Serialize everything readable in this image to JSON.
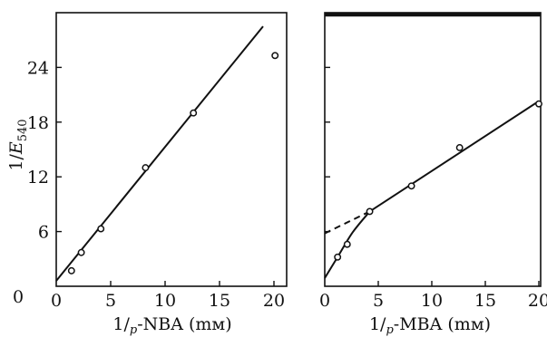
{
  "chart_data": [
    {
      "type": "scatter",
      "title": "",
      "xlabel": "1/p-NBA (mM)",
      "ylabel": "1/E540",
      "xlim": [
        0,
        21
      ],
      "ylim": [
        0,
        30
      ],
      "x_ticks": [
        "0",
        "5",
        "10",
        "15",
        "20"
      ],
      "y_ticks": [
        "6",
        "12",
        "18",
        "24"
      ],
      "series": [
        {
          "points": [
            {
              "x": 1.4,
              "y": 1.7
            },
            {
              "x": 2.3,
              "y": 3.7
            },
            {
              "x": 4.1,
              "y": 6.3
            },
            {
              "x": 8.2,
              "y": 13.0
            },
            {
              "x": 12.6,
              "y": 19.0
            },
            {
              "x": 20.1,
              "y": 25.3
            }
          ],
          "fit_lines": [
            {
              "style": "solid",
              "points": [
                {
                  "x": 0,
                  "y": 0.6
                },
                {
                  "x": 19.0,
                  "y": 28.5
                }
              ]
            }
          ]
        }
      ]
    },
    {
      "type": "scatter",
      "title": "",
      "xlabel": "1/p-MBA (mM)",
      "ylabel": "",
      "xlim": [
        0,
        21
      ],
      "ylim": [
        0,
        30
      ],
      "x_ticks": [
        "0",
        "5",
        "10",
        "15",
        "20"
      ],
      "y_ticks": [],
      "series": [
        {
          "points": [
            {
              "x": 1.2,
              "y": 3.2
            },
            {
              "x": 2.1,
              "y": 4.6
            },
            {
              "x": 4.2,
              "y": 8.2
            },
            {
              "x": 8.1,
              "y": 11.0
            },
            {
              "x": 12.6,
              "y": 15.2
            },
            {
              "x": 20.0,
              "y": 20.0
            }
          ],
          "fit_lines": [
            {
              "style": "solid",
              "points": [
                {
                  "x": 4.2,
                  "y": 8.2
                },
                {
                  "x": 20.0,
                  "y": 20.3
                }
              ]
            },
            {
              "style": "dashed",
              "points": [
                {
                  "x": 0,
                  "y": 5.8
                },
                {
                  "x": 4.2,
                  "y": 8.2
                }
              ]
            },
            {
              "style": "solid",
              "points": [
                {
                  "x": 0,
                  "y": 0.9
                },
                {
                  "x": 1.2,
                  "y": 3.2
                },
                {
                  "x": 2.6,
                  "y": 5.9
                },
                {
                  "x": 4.2,
                  "y": 8.2
                }
              ]
            }
          ]
        }
      ]
    }
  ]
}
